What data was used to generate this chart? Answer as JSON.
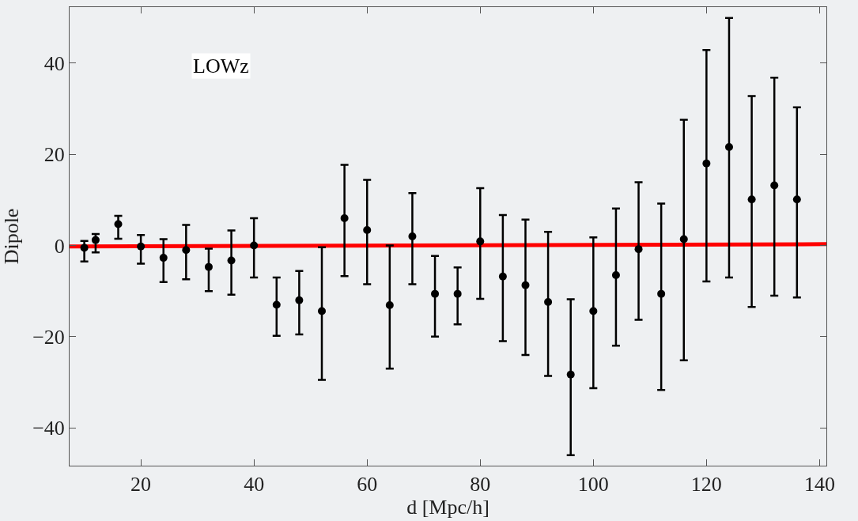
{
  "chart_data": {
    "type": "scatter",
    "xlabel": "d [Mpc/h]",
    "ylabel": "Dipole",
    "annotations": [
      "LOWz"
    ],
    "xlim": [
      7.4,
      141.2
    ],
    "ylim": [
      -48.3,
      52.3
    ],
    "xticks": [
      20,
      40,
      60,
      80,
      100,
      120,
      140
    ],
    "yticks": [
      -40,
      -20,
      0,
      20,
      40
    ],
    "grid": false,
    "series": [
      {
        "color": "#000000",
        "marker": "circle",
        "x": [
          10,
          12,
          16,
          20,
          24,
          28,
          32,
          36,
          40,
          44,
          48,
          52,
          56,
          60,
          64,
          68,
          72,
          76,
          80,
          84,
          88,
          92,
          96,
          100,
          104,
          108,
          112,
          116,
          120,
          124,
          128,
          132,
          136
        ],
        "values": [
          -0.5,
          1.2,
          4.7,
          -0.2,
          -2.7,
          -1,
          -4.7,
          -3.3,
          0,
          -13,
          -12,
          -14.4,
          6,
          3.4,
          -13.1,
          2,
          -10.6,
          -10.6,
          0.9,
          -6.8,
          -8.7,
          -12.4,
          -28.3,
          -14.4,
          -6.5,
          -0.8,
          -10.6,
          1.4,
          18,
          21.6,
          10.1,
          13.2,
          10.1
        ],
        "errors": [
          [
            -3.5,
            1
          ],
          [
            -1.5,
            2.5
          ],
          [
            1.5,
            6.5
          ],
          [
            -4,
            2.3
          ],
          [
            -8,
            1.4
          ],
          [
            -7.4,
            4.5
          ],
          [
            -10,
            -0.7
          ],
          [
            -10.8,
            3.3
          ],
          [
            -7,
            6
          ],
          [
            -19.8,
            -7
          ],
          [
            -19.5,
            -5.6
          ],
          [
            -29.5,
            -0.4
          ],
          [
            -6.7,
            17.7
          ],
          [
            -8.5,
            14.4
          ],
          [
            -27,
            0
          ],
          [
            -8.5,
            11.5
          ],
          [
            -20,
            -2.3
          ],
          [
            -17.3,
            -4.8
          ],
          [
            -11.7,
            12.6
          ],
          [
            -21,
            6.7
          ],
          [
            -24,
            5.7
          ],
          [
            -28.6,
            3
          ],
          [
            -46,
            -11.8
          ],
          [
            -31.3,
            1.8
          ],
          [
            -22,
            8.1
          ],
          [
            -16.3,
            13.9
          ],
          [
            -31.7,
            9.2
          ],
          [
            -25.2,
            27.6
          ],
          [
            -7.9,
            42.9
          ],
          [
            -7,
            49.9
          ],
          [
            -13.5,
            32.8
          ],
          [
            -11,
            36.8
          ],
          [
            -11.4,
            30.3
          ]
        ]
      },
      {
        "type": "line",
        "color": "#ff0000",
        "x": [
          7.4,
          141.2
        ],
        "values": [
          -0.2,
          0.3
        ]
      }
    ]
  }
}
